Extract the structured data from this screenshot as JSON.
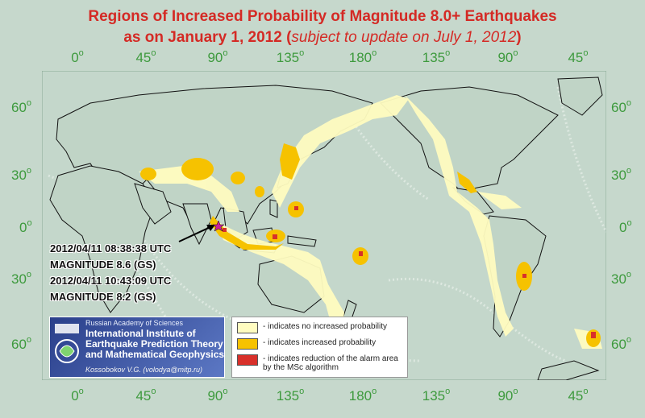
{
  "title": {
    "line1": "Regions of Increased Probability of Magnitude 8.0+ Earthquakes",
    "line2_main": "as on January 1, 2012 (",
    "line2_italic": "subject to update on July 1, 2012",
    "line2_close": ")"
  },
  "lon_labels": [
    "0",
    "45",
    "90",
    "135",
    "180",
    "135",
    "90",
    "45"
  ],
  "lat_labels": [
    "60",
    "30",
    "0",
    "30",
    "60"
  ],
  "degree_sign": "o",
  "quakes": [
    "2012/04/11 08:38:38 UTC",
    "MAGNITUDE 8.6 (GS)",
    "2012/04/11 10:43:09 UTC",
    "MAGNITUDE 8.2 (GS)"
  ],
  "institute": {
    "ras": "Russian Academy of Sciences",
    "name_lines": [
      "International Institute of",
      "Earthquake Prediction Theory",
      "and Mathematical Geophysics"
    ],
    "author": "Kossobokov V.G. (volodya@mitp.ru)"
  },
  "legend": [
    {
      "color": "#fffcc0",
      "lines": [
        "- indicates no increased probability"
      ]
    },
    {
      "color": "#f6c200",
      "lines": [
        "- indicates increased probability"
      ]
    },
    {
      "color": "#d8302a",
      "lines": [
        "- indicates reduction of the alarm area",
        "  by the MSc algorithm"
      ]
    }
  ],
  "colors": {
    "ocean": "#c6d8cc",
    "pale_zone": "#fffcc0",
    "increased": "#f6c200",
    "reduced": "#d8302a",
    "labels": "#3d9a3d",
    "title": "#d42a25"
  }
}
